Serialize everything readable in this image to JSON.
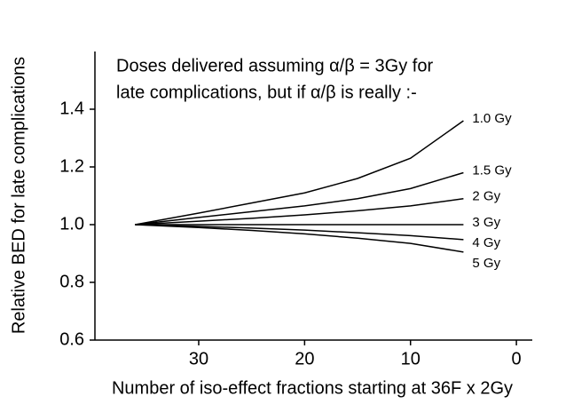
{
  "chart_data": {
    "type": "line",
    "annotation": [
      "Doses delivered assuming α/β = 3Gy for",
      "late complications, but if α/β is really :-"
    ],
    "y_label": "Relative BED for late complications",
    "x_label": "Number of iso-effect fractions starting at 36F x 2Gy",
    "x": [
      36,
      30,
      25,
      20,
      15,
      10,
      5
    ],
    "series": [
      {
        "name": "1.0 Gy",
        "color": "#000000",
        "values": [
          1,
          1.04,
          1.075,
          1.11,
          1.16,
          1.23,
          1.36
        ]
      },
      {
        "name": "1.5 Gy",
        "color": "#000000",
        "values": [
          1,
          1.025,
          1.045,
          1.065,
          1.09,
          1.125,
          1.18
        ]
      },
      {
        "name": "2 Gy",
        "color": "#000000",
        "values": [
          1,
          1.012,
          1.022,
          1.034,
          1.048,
          1.065,
          1.09
        ]
      },
      {
        "name": "3 Gy",
        "color": "#000000",
        "values": [
          1,
          1,
          1,
          1,
          1,
          1,
          1
        ]
      },
      {
        "name": "4 Gy",
        "color": "#000000",
        "values": [
          1,
          0.994,
          0.988,
          0.981,
          0.972,
          0.962,
          0.948
        ]
      },
      {
        "name": "5 Gy",
        "color": "#000000",
        "values": [
          1,
          0.99,
          0.98,
          0.968,
          0.953,
          0.935,
          0.905
        ]
      }
    ],
    "xlim": [
      39.8,
      -1.5
    ],
    "xticks": [
      30,
      20,
      10,
      0
    ],
    "ylim": [
      0.6,
      1.6
    ],
    "yticks": [
      {
        "value": 0.6,
        "label": "0.6"
      },
      {
        "value": 0.8,
        "label": "0.8"
      },
      {
        "value": 1.0,
        "label": "1.0"
      },
      {
        "value": 1.2,
        "label": "1.2"
      },
      {
        "value": 1.4,
        "label": "1.4"
      }
    ],
    "grid": false
  }
}
